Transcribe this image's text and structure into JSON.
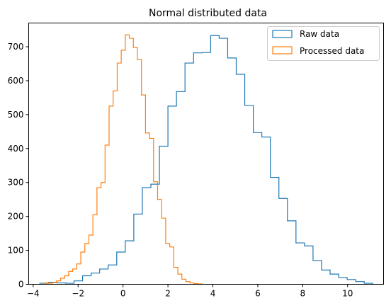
{
  "chart_data": {
    "type": "histogram",
    "title": "Normal distributed data",
    "xlabel": "",
    "ylabel": "",
    "xlim": [
      -4.2,
      11.6
    ],
    "ylim": [
      0,
      770
    ],
    "xticks": [
      -4,
      -2,
      0,
      2,
      4,
      6,
      8,
      10
    ],
    "yticks": [
      0,
      100,
      200,
      300,
      400,
      500,
      600,
      700
    ],
    "legend_position": "top-right",
    "grid": false,
    "series": [
      {
        "name": "Raw data",
        "color": "#1f77b4",
        "edges": [
          -3.7,
          -3.32,
          -2.94,
          -2.56,
          -2.18,
          -1.8,
          -1.42,
          -1.04,
          -0.66,
          -0.28,
          0.1,
          0.48,
          0.86,
          1.24,
          1.62,
          2.0,
          2.38,
          2.76,
          3.14,
          3.52,
          3.9,
          4.28,
          4.66,
          5.04,
          5.42,
          5.8,
          6.18,
          6.56,
          6.94,
          7.32,
          7.7,
          8.08,
          8.46,
          8.84,
          9.22,
          9.6,
          9.98,
          10.36,
          10.74,
          11.12
        ],
        "counts": [
          3,
          6,
          4,
          3,
          10,
          25,
          33,
          45,
          57,
          95,
          128,
          207,
          285,
          295,
          407,
          525,
          568,
          652,
          682,
          683,
          733,
          725,
          667,
          619,
          527,
          447,
          434,
          315,
          253,
          187,
          122,
          113,
          70,
          42,
          30,
          20,
          14,
          8,
          3
        ]
      },
      {
        "name": "Processed data",
        "color": "#ff7f0e",
        "edges": [
          -3.5,
          -3.32,
          -3.14,
          -2.96,
          -2.78,
          -2.6,
          -2.42,
          -2.24,
          -2.06,
          -1.88,
          -1.7,
          -1.52,
          -1.34,
          -1.16,
          -0.98,
          -0.8,
          -0.62,
          -0.44,
          -0.26,
          -0.08,
          0.1,
          0.28,
          0.46,
          0.64,
          0.82,
          1.0,
          1.18,
          1.36,
          1.54,
          1.72,
          1.9,
          2.08,
          2.26,
          2.44,
          2.62,
          2.8,
          2.98,
          3.16,
          3.34,
          3.52
        ],
        "counts": [
          4,
          3,
          5,
          10,
          18,
          25,
          38,
          45,
          60,
          95,
          120,
          145,
          205,
          285,
          300,
          410,
          525,
          570,
          652,
          690,
          735,
          725,
          698,
          662,
          558,
          446,
          430,
          302,
          250,
          195,
          120,
          110,
          50,
          30,
          15,
          8,
          4,
          2,
          1
        ]
      }
    ]
  }
}
